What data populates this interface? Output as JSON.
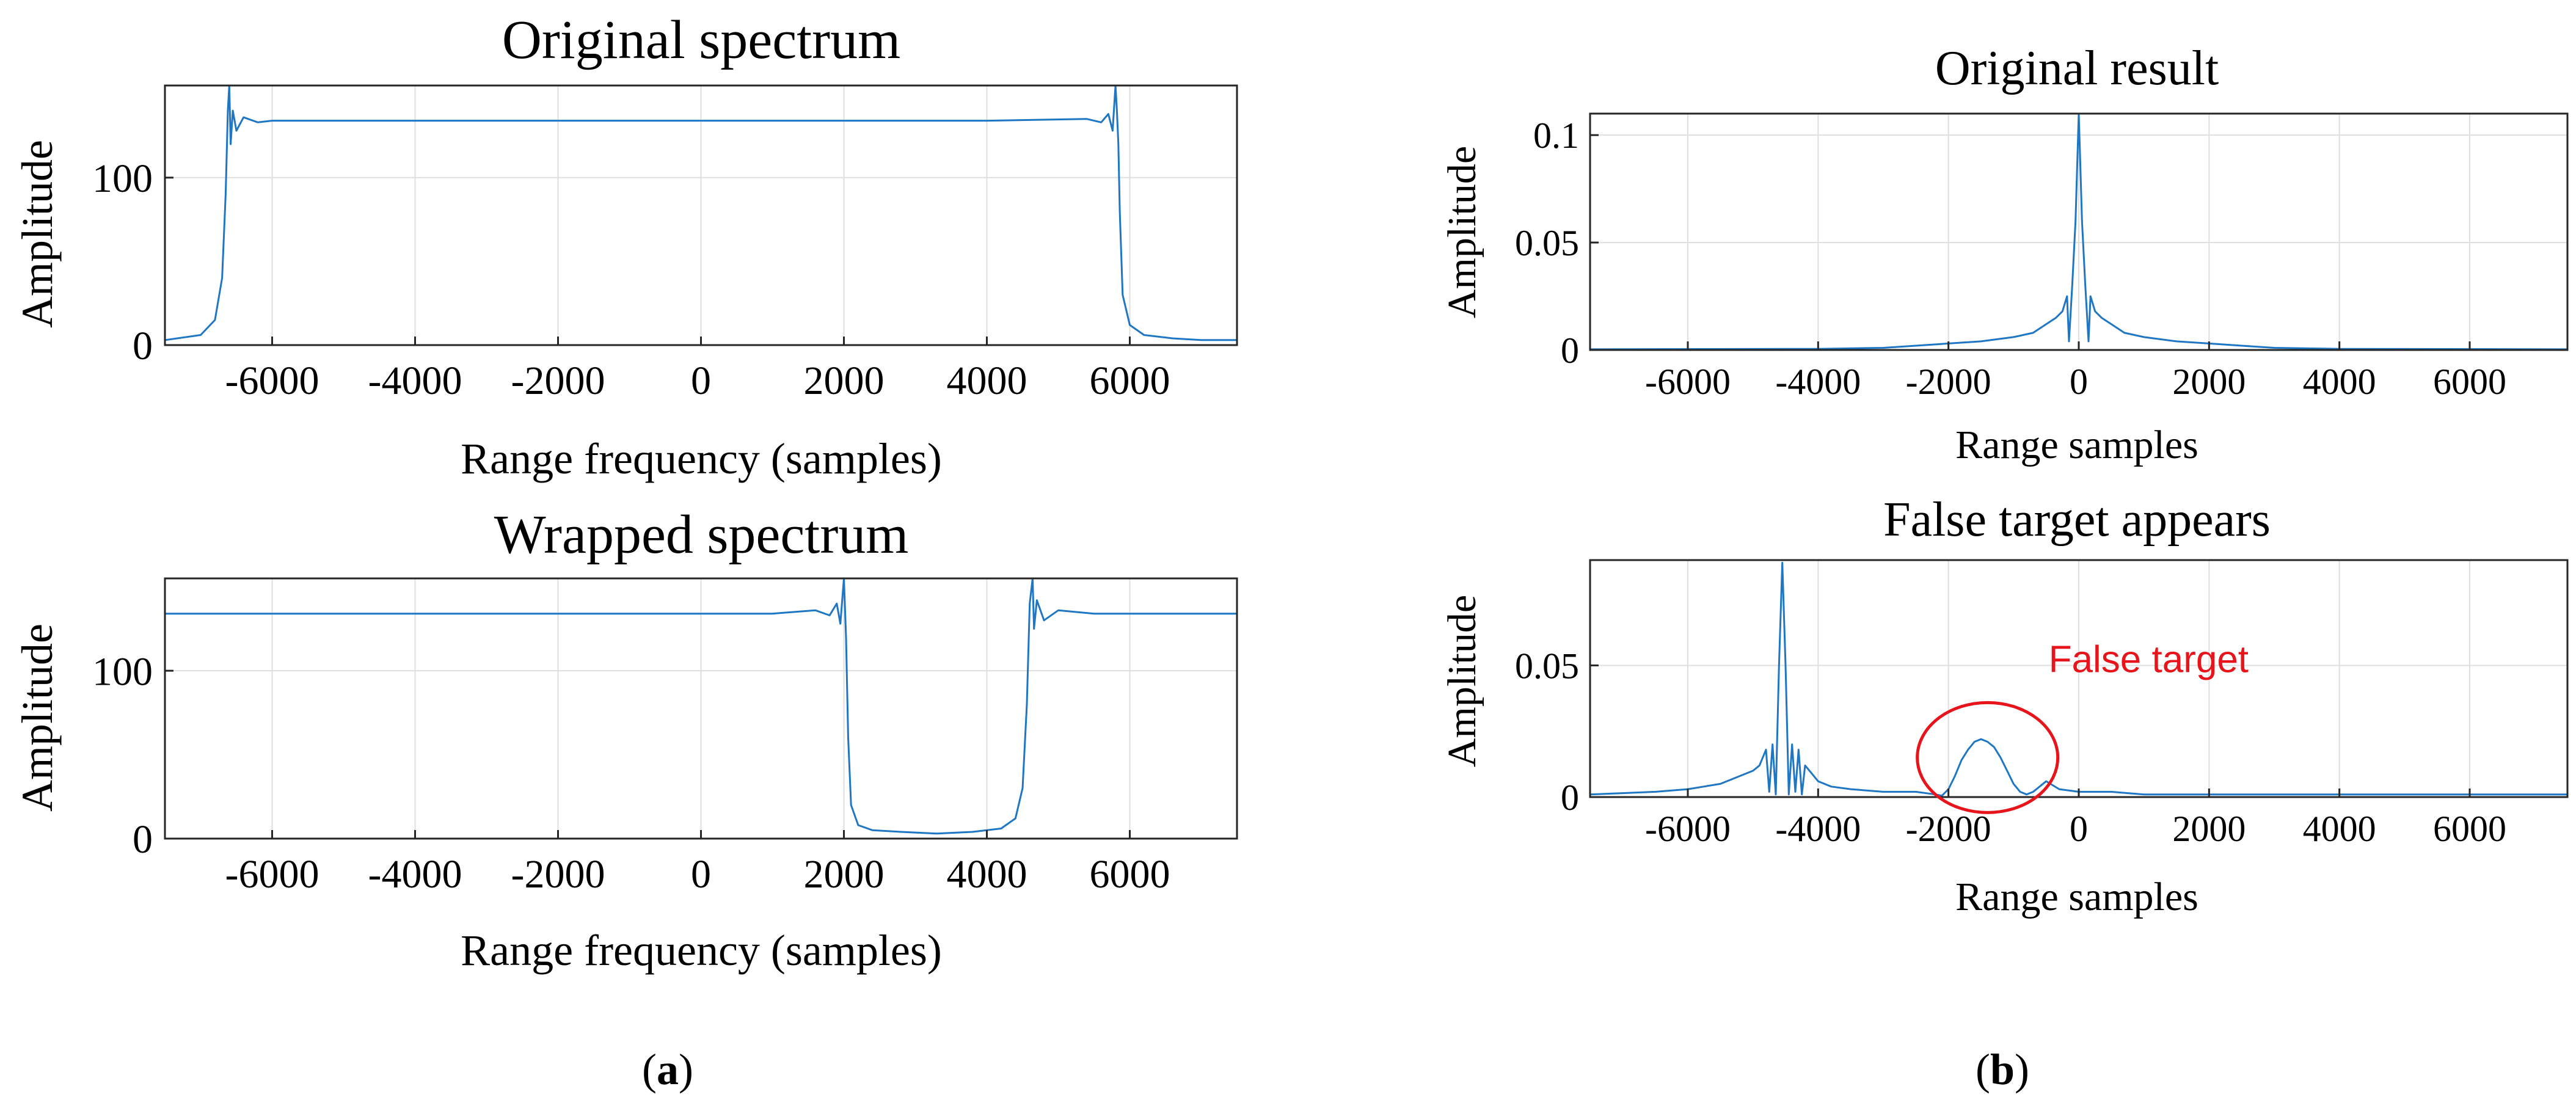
{
  "chart_data": [
    {
      "type": "line",
      "title": "Original spectrum",
      "xlabel": "Range frequency (samples)",
      "ylabel": "Amplitude",
      "xlim": [
        -7500,
        7500
      ],
      "ylim": [
        0,
        155
      ],
      "xticks": [
        -6000,
        -4000,
        -2000,
        0,
        2000,
        4000,
        6000
      ],
      "yticks": [
        0,
        100
      ],
      "xtick_labels": [
        "-6000",
        "-4000",
        "-2000",
        "0",
        "2000",
        "4000",
        "6000"
      ],
      "ytick_labels": [
        "0",
        "100"
      ],
      "grid": true,
      "series": [
        {
          "name": "spectrum",
          "color": "#1f77c4",
          "x": [
            -7500,
            -7000,
            -6800,
            -6700,
            -6650,
            -6620,
            -6600,
            -6580,
            -6550,
            -6500,
            -6400,
            -6200,
            -6000,
            -4000,
            -2000,
            0,
            2000,
            4000,
            5400,
            5600,
            5700,
            5760,
            5800,
            5820,
            5840,
            5860,
            5900,
            6000,
            6200,
            6600,
            7000,
            7500
          ],
          "y": [
            3,
            6,
            15,
            40,
            90,
            140,
            155,
            120,
            140,
            128,
            136,
            133,
            134,
            134,
            134,
            134,
            134,
            134,
            135,
            133,
            138,
            128,
            155,
            140,
            120,
            80,
            30,
            12,
            6,
            4,
            3,
            3
          ]
        }
      ]
    },
    {
      "type": "line",
      "title": "Wrapped spectrum",
      "xlabel": "Range frequency (samples)",
      "ylabel": "Amplitude",
      "xlim": [
        -7500,
        7500
      ],
      "ylim": [
        0,
        155
      ],
      "xticks": [
        -6000,
        -4000,
        -2000,
        0,
        2000,
        4000,
        6000
      ],
      "yticks": [
        0,
        100
      ],
      "xtick_labels": [
        "-6000",
        "-4000",
        "-2000",
        "0",
        "2000",
        "4000",
        "6000"
      ],
      "ytick_labels": [
        "0",
        "100"
      ],
      "grid": true,
      "series": [
        {
          "name": "spectrum",
          "color": "#1f77c4",
          "x": [
            -7500,
            -6000,
            -4000,
            -2000,
            0,
            1000,
            1600,
            1800,
            1900,
            1950,
            2000,
            2030,
            2060,
            2100,
            2200,
            2400,
            2800,
            3300,
            3800,
            4200,
            4400,
            4500,
            4560,
            4600,
            4640,
            4660,
            4700,
            4800,
            5000,
            5500,
            6500,
            7500
          ],
          "y": [
            134,
            134,
            134,
            134,
            134,
            134,
            136,
            133,
            140,
            128,
            155,
            120,
            60,
            20,
            8,
            5,
            4,
            3,
            4,
            6,
            12,
            30,
            80,
            140,
            155,
            125,
            142,
            130,
            136,
            134,
            134,
            134
          ]
        }
      ]
    },
    {
      "type": "line",
      "title": "Original result",
      "xlabel": "Range samples",
      "ylabel": "Amplitude",
      "xlim": [
        -7500,
        7500
      ],
      "ylim": [
        0,
        0.11
      ],
      "xticks": [
        -6000,
        -4000,
        -2000,
        0,
        2000,
        4000,
        6000
      ],
      "yticks": [
        0,
        0.05,
        0.1
      ],
      "xtick_labels": [
        "-6000",
        "-4000",
        "-2000",
        "0",
        "2000",
        "4000",
        "6000"
      ],
      "ytick_labels": [
        "0",
        "0.05",
        "0.1"
      ],
      "grid": true,
      "series": [
        {
          "name": "result",
          "color": "#1f77c4",
          "x": [
            -7500,
            -4000,
            -3000,
            -2500,
            -2000,
            -1500,
            -1000,
            -700,
            -500,
            -350,
            -250,
            -180,
            -150,
            -100,
            -50,
            0,
            50,
            100,
            150,
            180,
            250,
            350,
            500,
            700,
            1000,
            1500,
            2000,
            2500,
            3000,
            4000,
            7500
          ],
          "y": [
            0.0003,
            0.0005,
            0.001,
            0.002,
            0.003,
            0.004,
            0.006,
            0.008,
            0.012,
            0.015,
            0.018,
            0.025,
            0.004,
            0.03,
            0.06,
            0.11,
            0.06,
            0.03,
            0.004,
            0.025,
            0.018,
            0.015,
            0.012,
            0.008,
            0.006,
            0.004,
            0.003,
            0.002,
            0.001,
            0.0005,
            0.0003
          ]
        }
      ]
    },
    {
      "type": "line",
      "title": "False target appears",
      "xlabel": "Range samples",
      "ylabel": "Amplitude",
      "xlim": [
        -7500,
        7500
      ],
      "ylim": [
        0,
        0.09
      ],
      "xticks": [
        -6000,
        -4000,
        -2000,
        0,
        2000,
        4000,
        6000
      ],
      "yticks": [
        0,
        0.05
      ],
      "xtick_labels": [
        "-6000",
        "-4000",
        "-2000",
        "0",
        "2000",
        "4000",
        "6000"
      ],
      "ytick_labels": [
        "0",
        "0.05"
      ],
      "grid": true,
      "annotations": [
        {
          "text": "False target",
          "color": "#e8141c",
          "x": -1400,
          "y": 0.015
        }
      ],
      "series": [
        {
          "name": "result",
          "color": "#1f77c4",
          "x": [
            -7500,
            -6500,
            -6000,
            -5500,
            -5200,
            -5000,
            -4900,
            -4800,
            -4750,
            -4700,
            -4650,
            -4600,
            -4550,
            -4500,
            -4450,
            -4400,
            -4350,
            -4300,
            -4250,
            -4200,
            -4100,
            -4000,
            -3800,
            -3500,
            -3000,
            -2500,
            -2200,
            -2100,
            -2000,
            -1900,
            -1800,
            -1700,
            -1600,
            -1500,
            -1400,
            -1300,
            -1200,
            -1100,
            -1000,
            -900,
            -800,
            -700,
            -600,
            -500,
            -300,
            0,
            500,
            1000,
            2000,
            4000,
            7500
          ],
          "y": [
            0.001,
            0.002,
            0.003,
            0.005,
            0.008,
            0.01,
            0.012,
            0.018,
            0.002,
            0.02,
            0.001,
            0.05,
            0.089,
            0.05,
            0.001,
            0.02,
            0.002,
            0.018,
            0.001,
            0.012,
            0.009,
            0.006,
            0.004,
            0.003,
            0.002,
            0.002,
            0.001,
            0.0005,
            0.003,
            0.008,
            0.014,
            0.018,
            0.021,
            0.022,
            0.021,
            0.019,
            0.015,
            0.01,
            0.005,
            0.002,
            0.001,
            0.002,
            0.004,
            0.006,
            0.003,
            0.002,
            0.002,
            0.001,
            0.001,
            0.001,
            0.001
          ]
        }
      ]
    }
  ],
  "captions": {
    "a": {
      "open": "(",
      "letter": "a",
      "close": ")"
    },
    "b": {
      "open": "(",
      "letter": "b",
      "close": ")"
    }
  },
  "colors": {
    "line": "#1f77c4",
    "annotation": "#e8141c",
    "axis": "#262626",
    "grid": "#dfdfdf"
  }
}
